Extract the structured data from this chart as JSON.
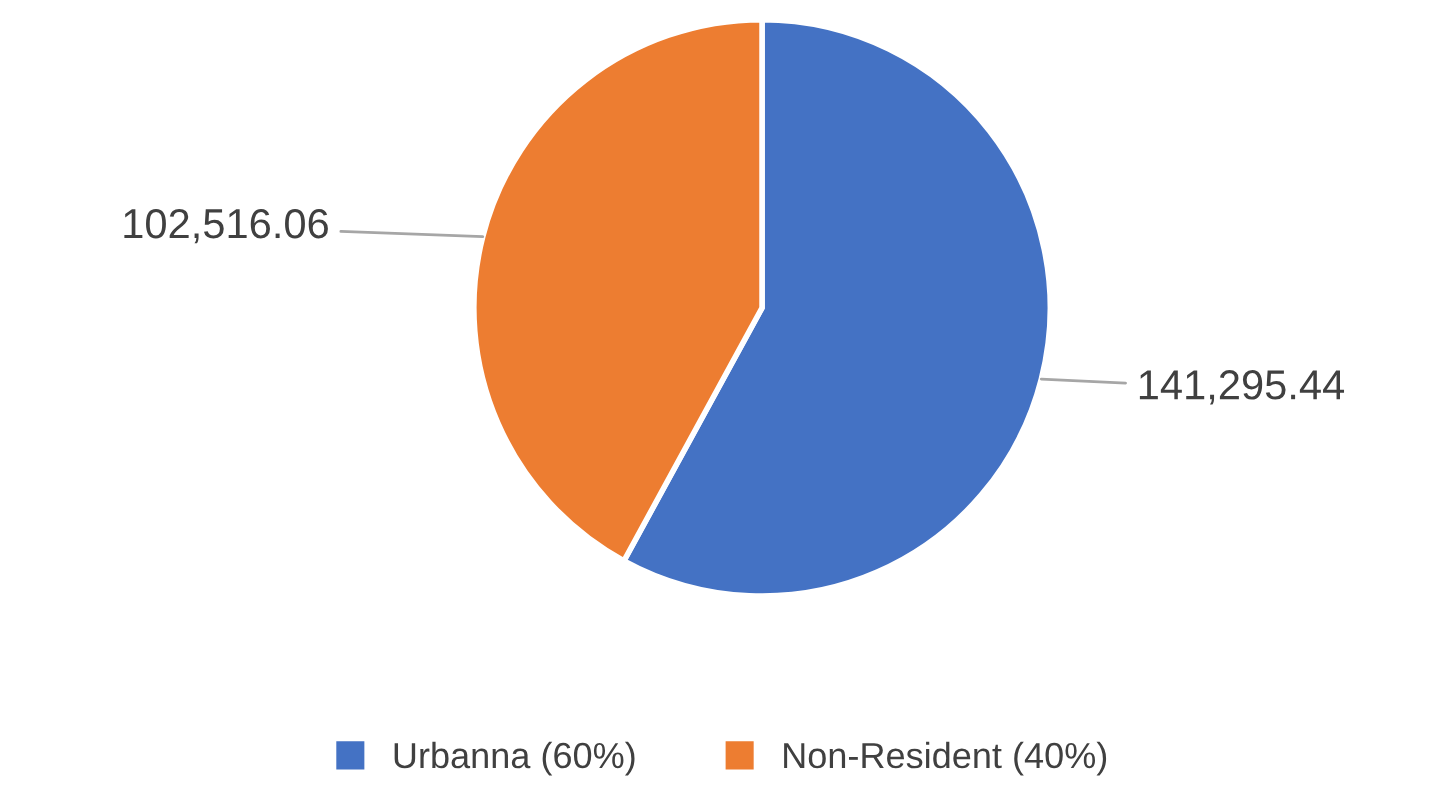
{
  "chart_data": {
    "type": "pie",
    "categories": [
      "Urbanna (60%)",
      "Non-Resident (40%)"
    ],
    "values": [
      141295.44,
      102516.06
    ],
    "colors": [
      "#4472c4",
      "#ed7d31"
    ],
    "value_labels": [
      "141,295.44",
      "102,516.06"
    ],
    "legend": "bottom"
  }
}
